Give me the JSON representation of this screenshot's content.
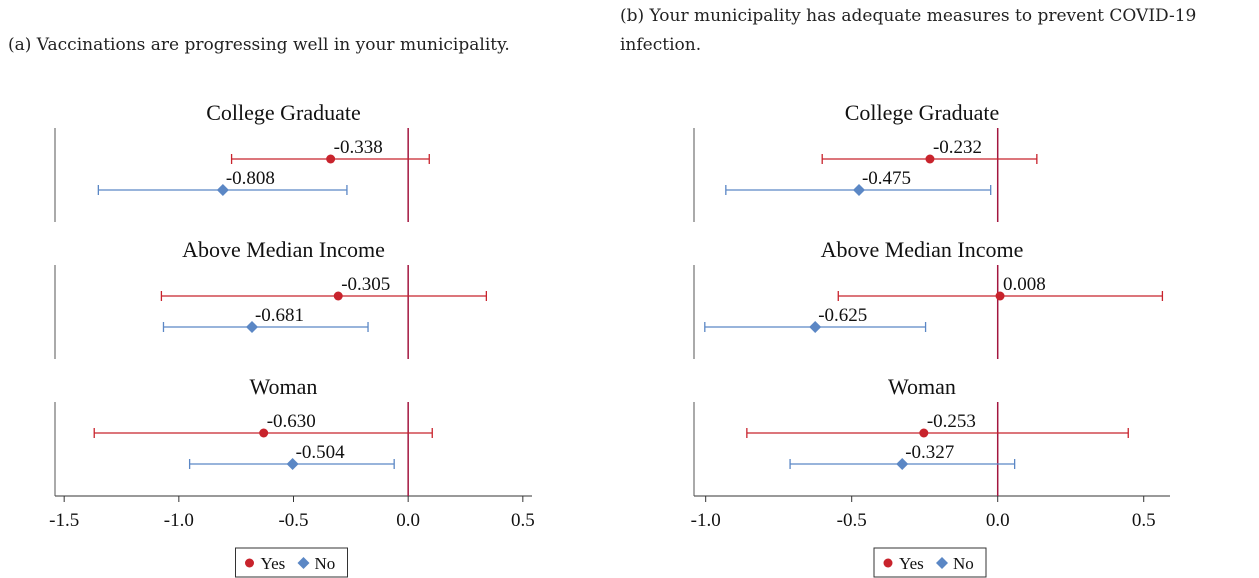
{
  "chart_data": [
    {
      "type": "coefplot",
      "title": "(a) Vaccinations are progressing well in your municipality.",
      "categories": [
        "College Graduate",
        "Above Median Income",
        "Woman"
      ],
      "series": [
        {
          "name": "Yes",
          "color": "#c8232c",
          "marker": "circle",
          "values": [
            -0.338,
            -0.305,
            -0.63
          ],
          "value_labels": [
            "-0.338",
            "-0.305",
            "-0.630"
          ],
          "lower": [
            -0.77,
            -1.076,
            -1.369
          ],
          "upper": [
            0.092,
            0.341,
            0.105
          ]
        },
        {
          "name": "No",
          "color": "#5b87c5",
          "marker": "diamond",
          "values": [
            -0.808,
            -0.681,
            -0.504
          ],
          "value_labels": [
            "-0.808",
            "-0.681",
            "-0.504"
          ],
          "lower": [
            -1.351,
            -1.067,
            -0.953
          ],
          "upper": [
            -0.267,
            -0.175,
            -0.061
          ]
        }
      ],
      "xlim": [
        -1.54,
        0.54
      ],
      "xticks": [
        -1.5,
        {
          "value": -1,
          "label": "-1.0"
        },
        -0.5,
        {
          "value": 0,
          "label": "0.0"
        },
        0.5
      ],
      "reference_line": 0,
      "reference_color": "#a3163f"
    },
    {
      "type": "coefplot",
      "title": "(b) Your municipality has adequate measures to prevent COVID-19 infection.",
      "categories": [
        "College Graduate",
        "Above Median Income",
        "Woman"
      ],
      "series": [
        {
          "name": "Yes",
          "color": "#c8232c",
          "marker": "circle",
          "values": [
            -0.232,
            0.008,
            -0.253
          ],
          "value_labels": [
            "-0.232",
            "0.008",
            "-0.253"
          ],
          "lower": [
            -0.601,
            -0.546,
            -0.859
          ],
          "upper": [
            0.134,
            0.564,
            0.447
          ]
        },
        {
          "name": "No",
          "color": "#5b87c5",
          "marker": "diamond",
          "values": [
            -0.475,
            -0.625,
            -0.327
          ],
          "value_labels": [
            "-0.475",
            "-0.625",
            "-0.327"
          ],
          "lower": [
            -0.931,
            -1.003,
            -0.711
          ],
          "upper": [
            -0.024,
            -0.247,
            0.058
          ]
        }
      ],
      "xlim": [
        -1.04,
        0.59
      ],
      "xticks": [
        {
          "value": -1,
          "label": "-1.0"
        },
        -0.5,
        {
          "value": 0,
          "label": "0.0"
        },
        0.5
      ],
      "reference_line": 0,
      "reference_color": "#a3163f"
    }
  ]
}
